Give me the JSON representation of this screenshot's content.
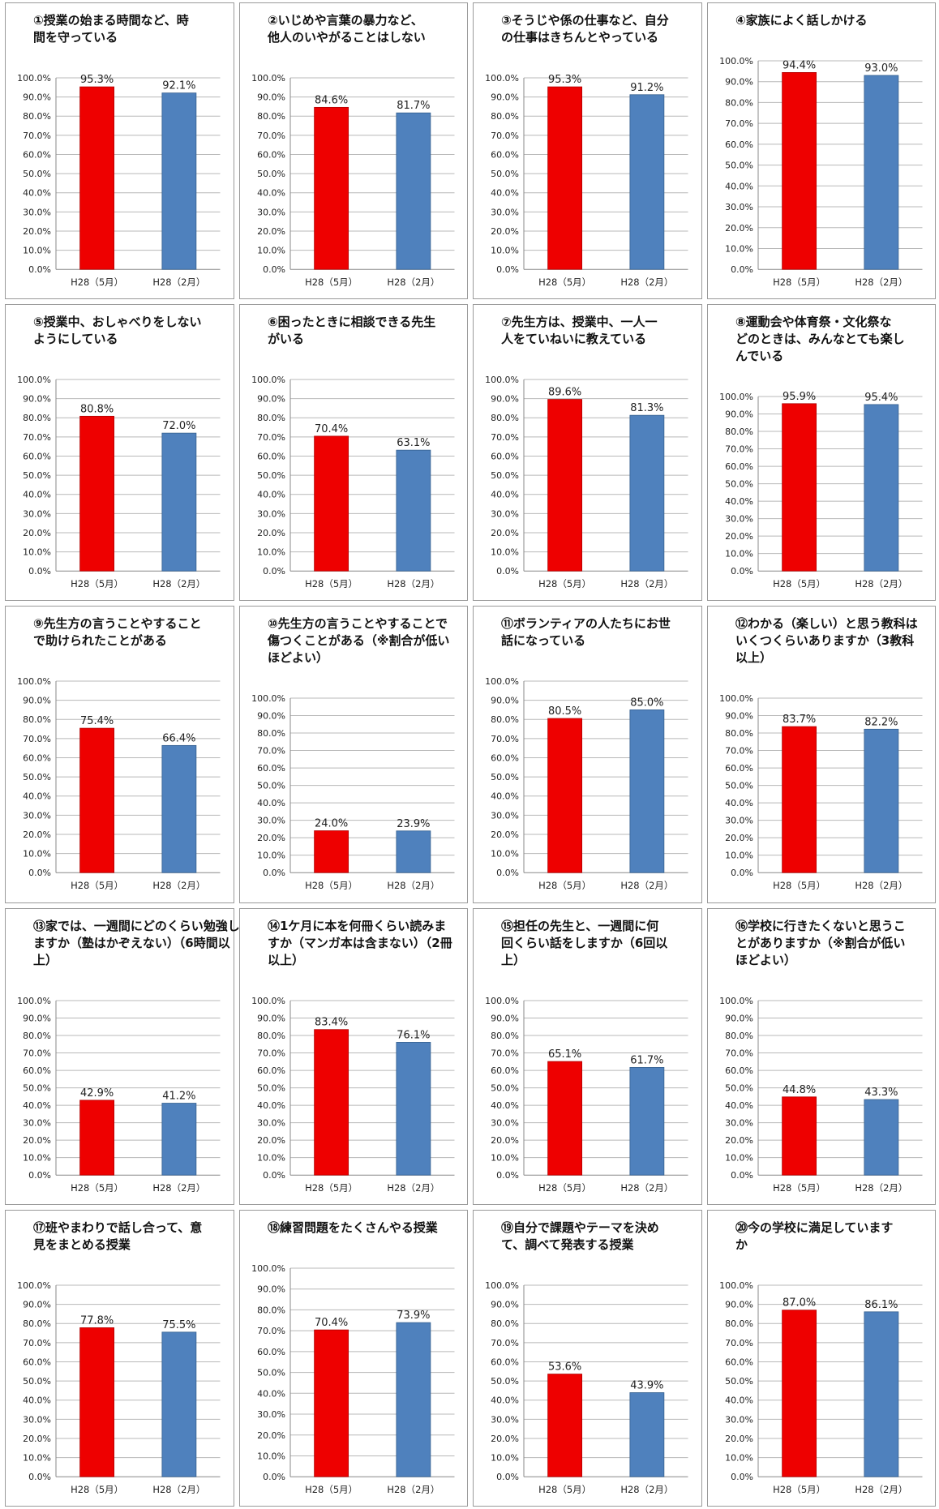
{
  "colors": {
    "bar_may": "#ee0000",
    "bar_feb": "#4f81bd",
    "grid": "#b8b8b8"
  },
  "chart_data": [
    {
      "type": "bar",
      "title_lines": [
        "①授業の始まる時間など、時",
        "間を守っている"
      ],
      "categories": [
        "H28（5月）",
        "H28（2月）"
      ],
      "values": [
        95.3,
        92.1
      ],
      "value_labels": [
        "95.3%",
        "92.1%"
      ],
      "yticks": [
        "0.0%",
        "10.0%",
        "20.0%",
        "30.0%",
        "40.0%",
        "50.0%",
        "60.0%",
        "70.0%",
        "80.0%",
        "90.0%",
        "100.0%"
      ],
      "ylim": [
        0,
        100
      ],
      "grid": true
    },
    {
      "type": "bar",
      "title_lines": [
        "②いじめや言葉の暴力など、",
        "他人のいやがることはしない"
      ],
      "categories": [
        "H28（5月）",
        "H28（2月）"
      ],
      "values": [
        84.6,
        81.7
      ],
      "value_labels": [
        "84.6%",
        "81.7%"
      ],
      "yticks": [
        "0.0%",
        "10.0%",
        "20.0%",
        "30.0%",
        "40.0%",
        "50.0%",
        "60.0%",
        "70.0%",
        "80.0%",
        "90.0%",
        "100.0%"
      ],
      "ylim": [
        0,
        100
      ],
      "grid": true
    },
    {
      "type": "bar",
      "title_lines": [
        "③そうじや係の仕事など、自分",
        "の仕事はきちんとやっている"
      ],
      "categories": [
        "H28（5月）",
        "H28（2月）"
      ],
      "values": [
        95.3,
        91.2
      ],
      "value_labels": [
        "95.3%",
        "91.2%"
      ],
      "yticks": [
        "0.0%",
        "10.0%",
        "20.0%",
        "30.0%",
        "40.0%",
        "50.0%",
        "60.0%",
        "70.0%",
        "80.0%",
        "90.0%",
        "100.0%"
      ],
      "ylim": [
        0,
        100
      ],
      "grid": true
    },
    {
      "type": "bar",
      "title_lines": [
        "④家族によく話しかける"
      ],
      "categories": [
        "H28（5月）",
        "H28（2月）"
      ],
      "values": [
        94.4,
        93.0
      ],
      "value_labels": [
        "94.4%",
        "93.0%"
      ],
      "yticks": [
        "0.0%",
        "10.0%",
        "20.0%",
        "30.0%",
        "40.0%",
        "50.0%",
        "60.0%",
        "70.0%",
        "80.0%",
        "90.0%",
        "100.0%"
      ],
      "ylim": [
        0,
        100
      ],
      "grid": true
    },
    {
      "type": "bar",
      "title_lines": [
        "⑤授業中、おしゃべりをしない",
        "ようにしている"
      ],
      "categories": [
        "H28（5月）",
        "H28（2月）"
      ],
      "values": [
        80.8,
        72.0
      ],
      "value_labels": [
        "80.8%",
        "72.0%"
      ],
      "yticks": [
        "0.0%",
        "10.0%",
        "20.0%",
        "30.0%",
        "40.0%",
        "50.0%",
        "60.0%",
        "70.0%",
        "80.0%",
        "90.0%",
        "100.0%"
      ],
      "ylim": [
        0,
        100
      ],
      "grid": true
    },
    {
      "type": "bar",
      "title_lines": [
        "⑥困ったときに相談できる先生",
        "がいる"
      ],
      "categories": [
        "H28（5月）",
        "H28（2月）"
      ],
      "values": [
        70.4,
        63.1
      ],
      "value_labels": [
        "70.4%",
        "63.1%"
      ],
      "yticks": [
        "0.0%",
        "10.0%",
        "20.0%",
        "30.0%",
        "40.0%",
        "50.0%",
        "60.0%",
        "70.0%",
        "80.0%",
        "90.0%",
        "100.0%"
      ],
      "ylim": [
        0,
        100
      ],
      "grid": true
    },
    {
      "type": "bar",
      "title_lines": [
        "⑦先生方は、授業中、一人一",
        "人をていねいに教えている"
      ],
      "categories": [
        "H28（5月）",
        "H28（2月）"
      ],
      "values": [
        89.6,
        81.3
      ],
      "value_labels": [
        "89.6%",
        "81.3%"
      ],
      "yticks": [
        "0.0%",
        "10.0%",
        "20.0%",
        "30.0%",
        "40.0%",
        "50.0%",
        "60.0%",
        "70.0%",
        "80.0%",
        "90.0%",
        "100.0%"
      ],
      "ylim": [
        0,
        100
      ],
      "grid": true
    },
    {
      "type": "bar",
      "title_lines": [
        "⑧運動会や体育祭・文化祭な",
        "どのときは、みんなとても楽し",
        "んでいる"
      ],
      "categories": [
        "H28（5月）",
        "H28（2月）"
      ],
      "values": [
        95.9,
        95.4
      ],
      "value_labels": [
        "95.9%",
        "95.4%"
      ],
      "yticks": [
        "0.0%",
        "10.0%",
        "20.0%",
        "30.0%",
        "40.0%",
        "50.0%",
        "60.0%",
        "70.0%",
        "80.0%",
        "90.0%",
        "100.0%"
      ],
      "ylim": [
        0,
        100
      ],
      "grid": true
    },
    {
      "type": "bar",
      "title_lines": [
        "⑨先生方の言うことやすること",
        "で助けられたことがある"
      ],
      "categories": [
        "H28（5月）",
        "H28（2月）"
      ],
      "values": [
        75.4,
        66.4
      ],
      "value_labels": [
        "75.4%",
        "66.4%"
      ],
      "yticks": [
        "0.0%",
        "10.0%",
        "20.0%",
        "30.0%",
        "40.0%",
        "50.0%",
        "60.0%",
        "70.0%",
        "80.0%",
        "90.0%",
        "100.0%"
      ],
      "ylim": [
        0,
        100
      ],
      "grid": true
    },
    {
      "type": "bar",
      "title_lines": [
        "⑩先生方の言うことやすることで",
        "傷つくことがある（※割合が低い",
        "ほどよい）"
      ],
      "categories": [
        "H28（5月）",
        "H28（2月）"
      ],
      "values": [
        24.0,
        23.9
      ],
      "value_labels": [
        "24.0%",
        "23.9%"
      ],
      "yticks": [
        "0.0%",
        "10.0%",
        "20.0%",
        "30.0%",
        "40.0%",
        "50.0%",
        "60.0%",
        "70.0%",
        "80.0%",
        "90.0%",
        "100.0%"
      ],
      "ylim": [
        0,
        100
      ],
      "grid": true
    },
    {
      "type": "bar",
      "title_lines": [
        "⑪ボランティアの人たちにお世",
        "話になっている"
      ],
      "categories": [
        "H28（5月）",
        "H28（2月）"
      ],
      "values": [
        80.5,
        85.0
      ],
      "value_labels": [
        "80.5%",
        "85.0%"
      ],
      "yticks": [
        "0.0%",
        "10.0%",
        "20.0%",
        "30.0%",
        "40.0%",
        "50.0%",
        "60.0%",
        "70.0%",
        "80.0%",
        "90.0%",
        "100.0%"
      ],
      "ylim": [
        0,
        100
      ],
      "grid": true
    },
    {
      "type": "bar",
      "title_lines": [
        "⑫わかる（楽しい）と思う教科は",
        "いくつくらいありますか（3教科",
        "以上）"
      ],
      "categories": [
        "H28（5月）",
        "H28（2月）"
      ],
      "values": [
        83.7,
        82.2
      ],
      "value_labels": [
        "83.7%",
        "82.2%"
      ],
      "yticks": [
        "0.0%",
        "10.0%",
        "20.0%",
        "30.0%",
        "40.0%",
        "50.0%",
        "60.0%",
        "70.0%",
        "80.0%",
        "90.0%",
        "100.0%"
      ],
      "ylim": [
        0,
        100
      ],
      "grid": true
    },
    {
      "type": "bar",
      "title_lines": [
        "⑬家では、一週間にどのくらい勉強し",
        "ますか（塾はかぞえない）（6時間以",
        "上）"
      ],
      "categories": [
        "H28（5月）",
        "H28（2月）"
      ],
      "values": [
        42.9,
        41.2
      ],
      "value_labels": [
        "42.9%",
        "41.2%"
      ],
      "yticks": [
        "0.0%",
        "10.0%",
        "20.0%",
        "30.0%",
        "40.0%",
        "50.0%",
        "60.0%",
        "70.0%",
        "80.0%",
        "90.0%",
        "100.0%"
      ],
      "ylim": [
        0,
        100
      ],
      "grid": true
    },
    {
      "type": "bar",
      "title_lines": [
        "⑭1ケ月に本を何冊くらい読みま",
        "すか（マンガ本は含まない）（2冊",
        "以上）"
      ],
      "categories": [
        "H28（5月）",
        "H28（2月）"
      ],
      "values": [
        83.4,
        76.1
      ],
      "value_labels": [
        "83.4%",
        "76.1%"
      ],
      "yticks": [
        "0.0%",
        "10.0%",
        "20.0%",
        "30.0%",
        "40.0%",
        "50.0%",
        "60.0%",
        "70.0%",
        "80.0%",
        "90.0%",
        "100.0%"
      ],
      "ylim": [
        0,
        100
      ],
      "grid": true
    },
    {
      "type": "bar",
      "title_lines": [
        "⑮担任の先生と、一週間に何",
        "回くらい話をしますか（6回以",
        "上）"
      ],
      "categories": [
        "H28（5月）",
        "H28（2月）"
      ],
      "values": [
        65.1,
        61.7
      ],
      "value_labels": [
        "65.1%",
        "61.7%"
      ],
      "yticks": [
        "0.0%",
        "10.0%",
        "20.0%",
        "30.0%",
        "40.0%",
        "50.0%",
        "60.0%",
        "70.0%",
        "80.0%",
        "90.0%",
        "100.0%"
      ],
      "ylim": [
        0,
        100
      ],
      "grid": true
    },
    {
      "type": "bar",
      "title_lines": [
        "⑯学校に行きたくないと思うこ",
        "とがありますか（※割合が低い",
        "ほどよい）"
      ],
      "categories": [
        "H28（5月）",
        "H28（2月）"
      ],
      "values": [
        44.8,
        43.3
      ],
      "value_labels": [
        "44.8%",
        "43.3%"
      ],
      "yticks": [
        "0.0%",
        "10.0%",
        "20.0%",
        "30.0%",
        "40.0%",
        "50.0%",
        "60.0%",
        "70.0%",
        "80.0%",
        "90.0%",
        "100.0%"
      ],
      "ylim": [
        0,
        100
      ],
      "grid": true
    },
    {
      "type": "bar",
      "title_lines": [
        "⑰班やまわりで話し合って、意",
        "見をまとめる授業"
      ],
      "categories": [
        "H28（5月）",
        "H28（2月）"
      ],
      "values": [
        77.8,
        75.5
      ],
      "value_labels": [
        "77.8%",
        "75.5%"
      ],
      "yticks": [
        "0.0%",
        "10.0%",
        "20.0%",
        "30.0%",
        "40.0%",
        "50.0%",
        "60.0%",
        "70.0%",
        "80.0%",
        "90.0%",
        "100.0%"
      ],
      "ylim": [
        0,
        100
      ],
      "grid": true
    },
    {
      "type": "bar",
      "title_lines": [
        "⑱練習問題をたくさんやる授業"
      ],
      "categories": [
        "H28（5月）",
        "H28（2月）"
      ],
      "values": [
        70.4,
        73.9
      ],
      "value_labels": [
        "70.4%",
        "73.9%"
      ],
      "yticks": [
        "0.0%",
        "10.0%",
        "20.0%",
        "30.0%",
        "40.0%",
        "50.0%",
        "60.0%",
        "70.0%",
        "80.0%",
        "90.0%",
        "100.0%"
      ],
      "ylim": [
        0,
        100
      ],
      "grid": true
    },
    {
      "type": "bar",
      "title_lines": [
        "⑲自分で課題やテーマを決め",
        "て、調べて発表する授業"
      ],
      "categories": [
        "H28（5月）",
        "H28（2月）"
      ],
      "values": [
        53.6,
        43.9
      ],
      "value_labels": [
        "53.6%",
        "43.9%"
      ],
      "yticks": [
        "0.0%",
        "10.0%",
        "20.0%",
        "30.0%",
        "40.0%",
        "50.0%",
        "60.0%",
        "70.0%",
        "80.0%",
        "90.0%",
        "100.0%"
      ],
      "ylim": [
        0,
        100
      ],
      "grid": true
    },
    {
      "type": "bar",
      "title_lines": [
        "⑳今の学校に満足しています",
        "か"
      ],
      "categories": [
        "H28（5月）",
        "H28（2月）"
      ],
      "values": [
        87.0,
        86.1
      ],
      "value_labels": [
        "87.0%",
        "86.1%"
      ],
      "yticks": [
        "0.0%",
        "10.0%",
        "20.0%",
        "30.0%",
        "40.0%",
        "50.0%",
        "60.0%",
        "70.0%",
        "80.0%",
        "90.0%",
        "100.0%"
      ],
      "ylim": [
        0,
        100
      ],
      "grid": true
    }
  ]
}
